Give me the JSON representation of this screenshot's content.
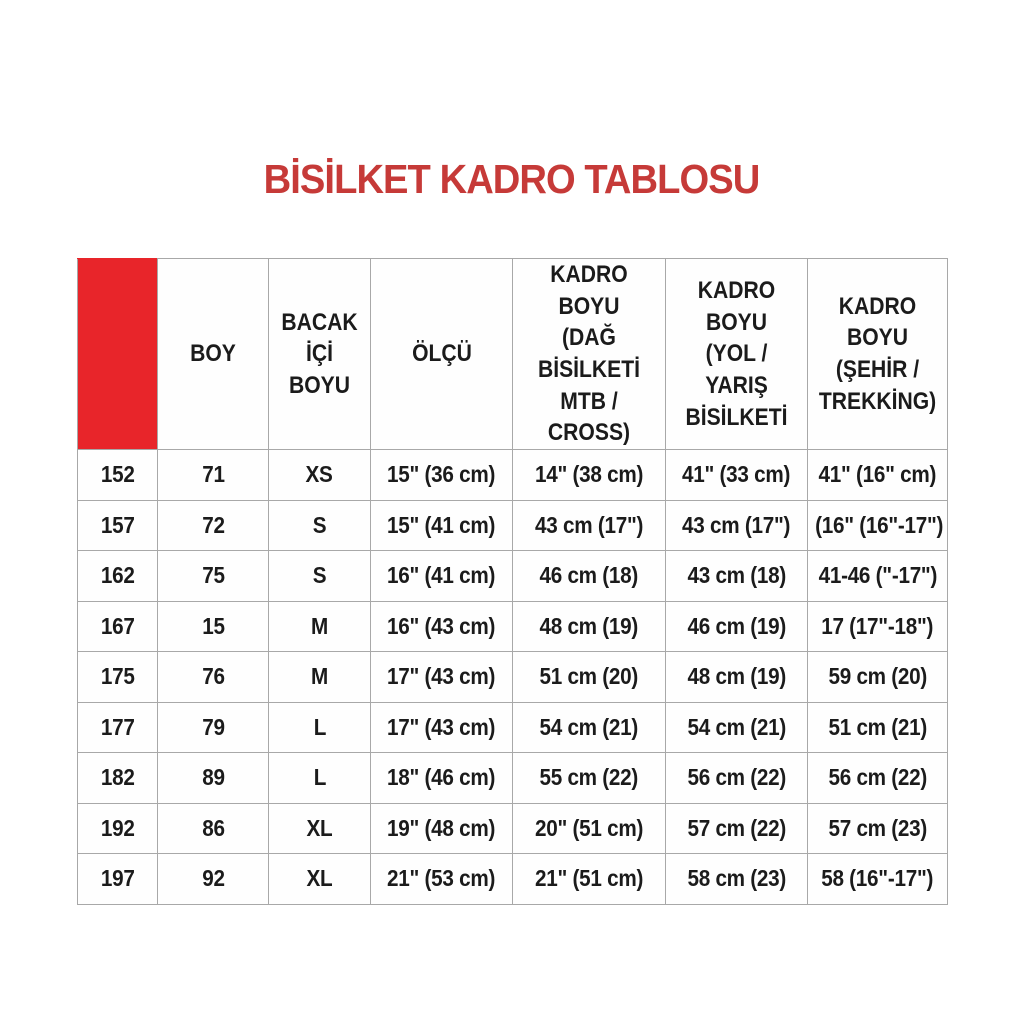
{
  "title": {
    "text": "BİSİLKET KADRO TABLOSU",
    "color": "#c63a38"
  },
  "table": {
    "accent_color": "#e8252a",
    "border_color": "#a8a8a8",
    "headers": [
      "",
      "BOY",
      "BACAK\nİÇİ BOYU",
      "ÖLÇÜ",
      "KADRO BOYU\n(DAĞ BİSİLKETİ\nMTB / CROSS)",
      "KADRO BOYU\n(YOL / YARIŞ\nBİSİLKETİ",
      "KADRO BOYU\n(ŞEHİR /\nTREKKİNG)"
    ],
    "rows": [
      [
        "152",
        "71",
        "XS",
        "15\" (36 cm)",
        "14\" (38 cm)",
        "41\" (33 cm)",
        "41\" (16\" cm)"
      ],
      [
        "157",
        "72",
        "S",
        "15\" (41 cm)",
        "43 cm (17\")",
        "43 cm (17\")",
        "(16\" (16\"-17\")"
      ],
      [
        "162",
        "75",
        "S",
        "16\" (41 cm)",
        "46 cm (18)",
        "43 cm (18)",
        "41-46 (\"-17\")"
      ],
      [
        "167",
        "15",
        "M",
        "16\" (43 cm)",
        "48 cm (19)",
        "46 cm (19)",
        "17 (17\"-18\")"
      ],
      [
        "175",
        "76",
        "M",
        "17\" (43 cm)",
        "51 cm (20)",
        "48 cm (19)",
        "59 cm (20)"
      ],
      [
        "177",
        "79",
        "L",
        "17\" (43 cm)",
        "54 cm (21)",
        "54 cm (21)",
        "51 cm (21)"
      ],
      [
        "182",
        "89",
        "L",
        "18\" (46 cm)",
        "55 cm (22)",
        "56 cm (22)",
        "56 cm (22)"
      ],
      [
        "192",
        "86",
        "XL",
        "19\" (48 cm)",
        "20\" (51 cm)",
        "57 cm (22)",
        "57 cm (23)"
      ],
      [
        "197",
        "92",
        "XL",
        "21\" (53 cm)",
        "21\" (51 cm)",
        "58 cm (23)",
        "58 (16\"-17\")"
      ]
    ]
  },
  "chart_data": {
    "type": "table",
    "title": "BİSİLKET KADRO TABLOSU",
    "columns": [
      "",
      "BOY",
      "BACAK İÇİ BOYU",
      "ÖLÇÜ",
      "KADRO BOYU (DAĞ BİSİLKETİ MTB / CROSS)",
      "KADRO BOYU (YOL / YARIŞ BİSİLKETİ",
      "KADRO BOYU (ŞEHİR / TREKKİNG)"
    ],
    "rows": [
      [
        "152",
        "71",
        "XS",
        "15\" (36 cm)",
        "14\" (38 cm)",
        "41\" (33 cm)",
        "41\" (16\" cm)"
      ],
      [
        "157",
        "72",
        "S",
        "15\" (41 cm)",
        "43 cm (17\")",
        "43 cm (17\")",
        "(16\" (16\"-17\")"
      ],
      [
        "162",
        "75",
        "S",
        "16\" (41 cm)",
        "46 cm (18)",
        "43 cm (18)",
        "41-46 (\"-17\")"
      ],
      [
        "167",
        "15",
        "M",
        "16\" (43 cm)",
        "48 cm (19)",
        "46 cm (19)",
        "17 (17\"-18\")"
      ],
      [
        "175",
        "76",
        "M",
        "17\" (43 cm)",
        "51 cm (20)",
        "48 cm (19)",
        "59 cm (20)"
      ],
      [
        "177",
        "79",
        "L",
        "17\" (43 cm)",
        "54 cm (21)",
        "54 cm (21)",
        "51 cm (21)"
      ],
      [
        "182",
        "89",
        "L",
        "18\" (46 cm)",
        "55 cm (22)",
        "56 cm (22)",
        "56 cm (22)"
      ],
      [
        "192",
        "86",
        "XL",
        "19\" (48 cm)",
        "20\" (51 cm)",
        "57 cm (22)",
        "57 cm (23)"
      ],
      [
        "197",
        "92",
        "XL",
        "21\" (53 cm)",
        "21\" (51 cm)",
        "58 cm (23)",
        "58 (16\"-17\")"
      ]
    ]
  }
}
